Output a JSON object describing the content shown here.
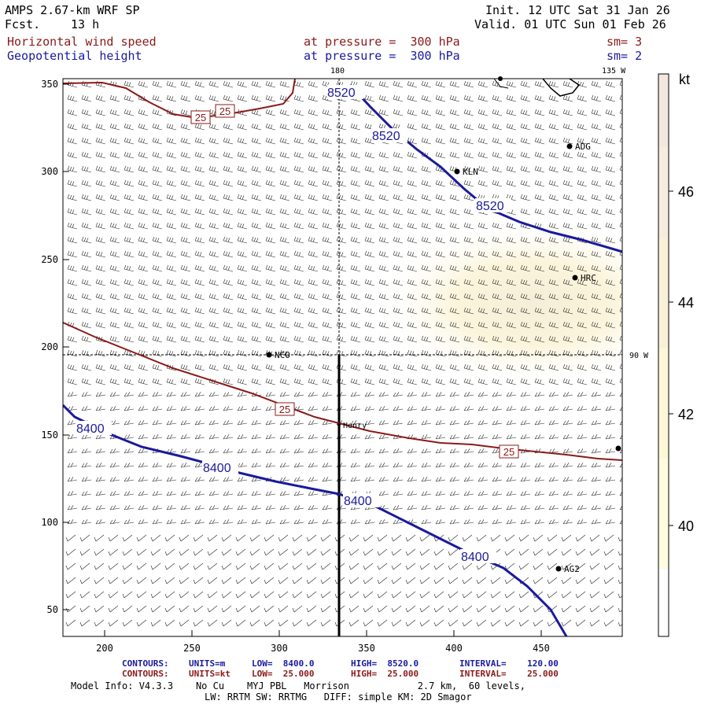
{
  "header": {
    "model": "AMPS 2.67-km WRF SP",
    "fcst_label": "Fcst.",
    "fcst_value": "13 h",
    "init": "Init. 12 UTC Sat 31 Jan 26",
    "valid": "Valid. 01 UTC Sun 01 Feb 26"
  },
  "fields": [
    {
      "name": "Horizontal wind speed",
      "level": "at pressure =  300 hPa",
      "sm": "sm= 3",
      "color": "#8b1a1a"
    },
    {
      "name": "Geopotential height",
      "level": "at pressure =  300 hPa",
      "sm": "sm= 2",
      "color": "#1a1a9c"
    }
  ],
  "map": {
    "x_ticks": [
      "200",
      "250",
      "300",
      "350",
      "400",
      "450"
    ],
    "y_ticks": [
      "350",
      "300",
      "250",
      "200",
      "150",
      "100",
      "50"
    ],
    "meridian_labels": [
      "180",
      "135 W",
      "90 W"
    ],
    "stations": [
      {
        "name": "ADG"
      },
      {
        "name": "KLN"
      },
      {
        "name": "HRC"
      },
      {
        "name": "NCO"
      },
      {
        "name": "Henry"
      },
      {
        "name": "AG2"
      },
      {
        "name": ""
      },
      {
        "name": ""
      }
    ],
    "height_contour_labels": [
      "8520",
      "8520",
      "8520",
      "8400",
      "8400",
      "8400",
      "8400"
    ],
    "wind_contour_labels": [
      "25",
      "25",
      "25",
      "25"
    ]
  },
  "colorbar": {
    "unit": "kt",
    "ticks": [
      "46",
      "44",
      "42",
      "40"
    ],
    "colors": [
      "#f3e8df",
      "#f7eedb",
      "#fbf6d6",
      "#fefcde",
      "#ffffff"
    ]
  },
  "footer": {
    "row1": {
      "label": "CONTOURS:",
      "units": "UNITS=m",
      "low": "LOW=  8400.0",
      "high": "HIGH=  8520.0",
      "interval": "INTERVAL=    120.00"
    },
    "row2": {
      "label": "CONTOURS:",
      "units": "UNITS=kt",
      "low": "LOW=  25.000",
      "high": "HIGH=  25.000",
      "interval": "INTERVAL=    25.000"
    },
    "model_info": "Model Info: V4.3.3    No Cu    MYJ PBL   Morrison            2.7 km,  60 levels,",
    "physics": "LW: RRTM SW: RRTMG   DIFF: simple KM: 2D Smagor"
  }
}
